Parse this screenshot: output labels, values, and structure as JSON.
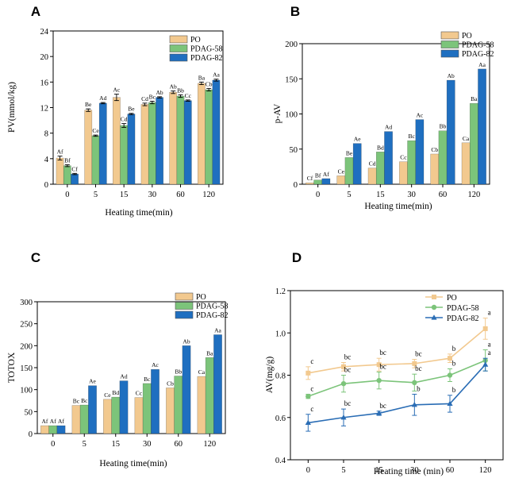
{
  "chart_data": [
    {
      "panel": "A",
      "type": "bar",
      "xlabel": "Heating time(min)",
      "ylabel": "PV(mmol/kg)",
      "ylim": [
        0,
        24
      ],
      "yticks": [
        0,
        4,
        8,
        12,
        16,
        20,
        24
      ],
      "categories": [
        "0",
        "5",
        "15",
        "30",
        "60",
        "120"
      ],
      "legend_position": "top-right",
      "series": [
        {
          "name": "PO",
          "color": "#f2c98f",
          "values": [
            4.1,
            11.6,
            13.6,
            12.5,
            14.4,
            15.8
          ],
          "errors": [
            0.3,
            0.2,
            0.5,
            0.2,
            0.2,
            0.2
          ],
          "labels": [
            "Af",
            "Be",
            "Ac",
            "Cd",
            "Ab",
            "Ba"
          ]
        },
        {
          "name": "PDAG-58",
          "color": "#7cc47a",
          "values": [
            2.9,
            7.6,
            9.2,
            12.8,
            13.8,
            14.8
          ],
          "errors": [
            0.15,
            0.1,
            0.3,
            0.2,
            0.2,
            0.2
          ],
          "labels": [
            "Bf",
            "Ce",
            "Cd",
            "Bc",
            "Bb",
            "Cb"
          ]
        },
        {
          "name": "PDAG-82",
          "color": "#1f6fc0",
          "values": [
            1.6,
            12.7,
            11.0,
            13.6,
            13.1,
            16.3
          ],
          "errors": [
            0.1,
            0.1,
            0.1,
            0.1,
            0.1,
            0.15
          ],
          "labels": [
            "Cf",
            "Ad",
            "Be",
            "Ab",
            "Cc",
            "Aa"
          ]
        }
      ]
    },
    {
      "panel": "B",
      "type": "bar",
      "xlabel": "Heating time(min)",
      "ylabel": "p-AV",
      "ylim": [
        0,
        200
      ],
      "yticks": [
        0,
        50,
        100,
        150,
        200
      ],
      "categories": [
        "0",
        "5",
        "15",
        "30",
        "60",
        "120"
      ],
      "legend_position": "top-right",
      "series": [
        {
          "name": "PO",
          "color": "#f2c98f",
          "values": [
            2,
            12,
            23,
            32,
            43,
            59
          ],
          "labels": [
            "Cf",
            "Ce",
            "Cd",
            "Cc",
            "Cb",
            "Ca"
          ]
        },
        {
          "name": "PDAG-58",
          "color": "#7cc47a",
          "values": [
            6,
            38,
            46,
            62,
            76,
            115
          ],
          "labels": [
            "Bf",
            "Be",
            "Bd",
            "Bc",
            "Bb",
            "Ba"
          ]
        },
        {
          "name": "PDAG-82",
          "color": "#1f6fc0",
          "values": [
            8,
            58,
            75,
            92,
            148,
            164
          ],
          "labels": [
            "Af",
            "Ae",
            "Ad",
            "Ac",
            "Ab",
            "Aa"
          ]
        }
      ]
    },
    {
      "panel": "C",
      "type": "bar",
      "xlabel": "Heating time(min)",
      "ylabel": "TOTOX",
      "ylim": [
        0,
        300
      ],
      "yticks": [
        0,
        50,
        100,
        150,
        200,
        250,
        300
      ],
      "categories": [
        "0",
        "5",
        "15",
        "30",
        "60",
        "120"
      ],
      "legend_position": "top-right",
      "series": [
        {
          "name": "PO",
          "color": "#f2c98f",
          "values": [
            18,
            64,
            78,
            82,
            104,
            130
          ],
          "labels": [
            "Af",
            "Bc",
            "Ce",
            "Cc",
            "Cb",
            "Ca"
          ]
        },
        {
          "name": "PDAG-58",
          "color": "#7cc47a",
          "values": [
            18,
            65,
            83,
            114,
            131,
            173
          ],
          "labels": [
            "Af",
            "Bc",
            "Bd",
            "Bc",
            "Bb",
            "Ba"
          ]
        },
        {
          "name": "PDAG-82",
          "color": "#1f6fc0",
          "values": [
            18,
            109,
            120,
            146,
            200,
            225
          ],
          "labels": [
            "Af",
            "Ae",
            "Ad",
            "Ac",
            "Ab",
            "Aa"
          ]
        }
      ]
    },
    {
      "panel": "D",
      "type": "line",
      "xlabel": "Heating time (min)",
      "ylabel": "AV(mg/g)",
      "ylim": [
        0.4,
        1.2
      ],
      "yticks": [
        "0.4",
        "0.6",
        "0.8",
        "1.0",
        "1.2"
      ],
      "categories": [
        "0",
        "5",
        "15",
        "30",
        "60",
        "120"
      ],
      "legend_position": "top-right",
      "series": [
        {
          "name": "PO",
          "color": "#f2c98f",
          "marker": "square",
          "values": [
            0.81,
            0.84,
            0.85,
            0.855,
            0.88,
            1.02
          ],
          "errors": [
            0.03,
            0.02,
            0.03,
            0.02,
            0.02,
            0.05
          ],
          "labels": [
            "c",
            "bc",
            "bc",
            "bc",
            "b",
            "a"
          ]
        },
        {
          "name": "PDAG-58",
          "color": "#7cc47a",
          "marker": "circle",
          "values": [
            0.7,
            0.76,
            0.775,
            0.765,
            0.8,
            0.87
          ],
          "errors": [
            0.01,
            0.04,
            0.04,
            0.04,
            0.03,
            0.05
          ],
          "labels": [
            "c",
            "bc",
            "bc",
            "bc",
            "b",
            "a"
          ]
        },
        {
          "name": "PDAG-82",
          "color": "#2a6db5",
          "marker": "triangle",
          "values": [
            0.575,
            0.6,
            0.62,
            0.66,
            0.665,
            0.85
          ],
          "errors": [
            0.04,
            0.04,
            0.01,
            0.05,
            0.04,
            0.03
          ],
          "labels": [
            "c",
            "bc",
            "bc",
            "b",
            "b",
            "a"
          ]
        }
      ]
    }
  ]
}
